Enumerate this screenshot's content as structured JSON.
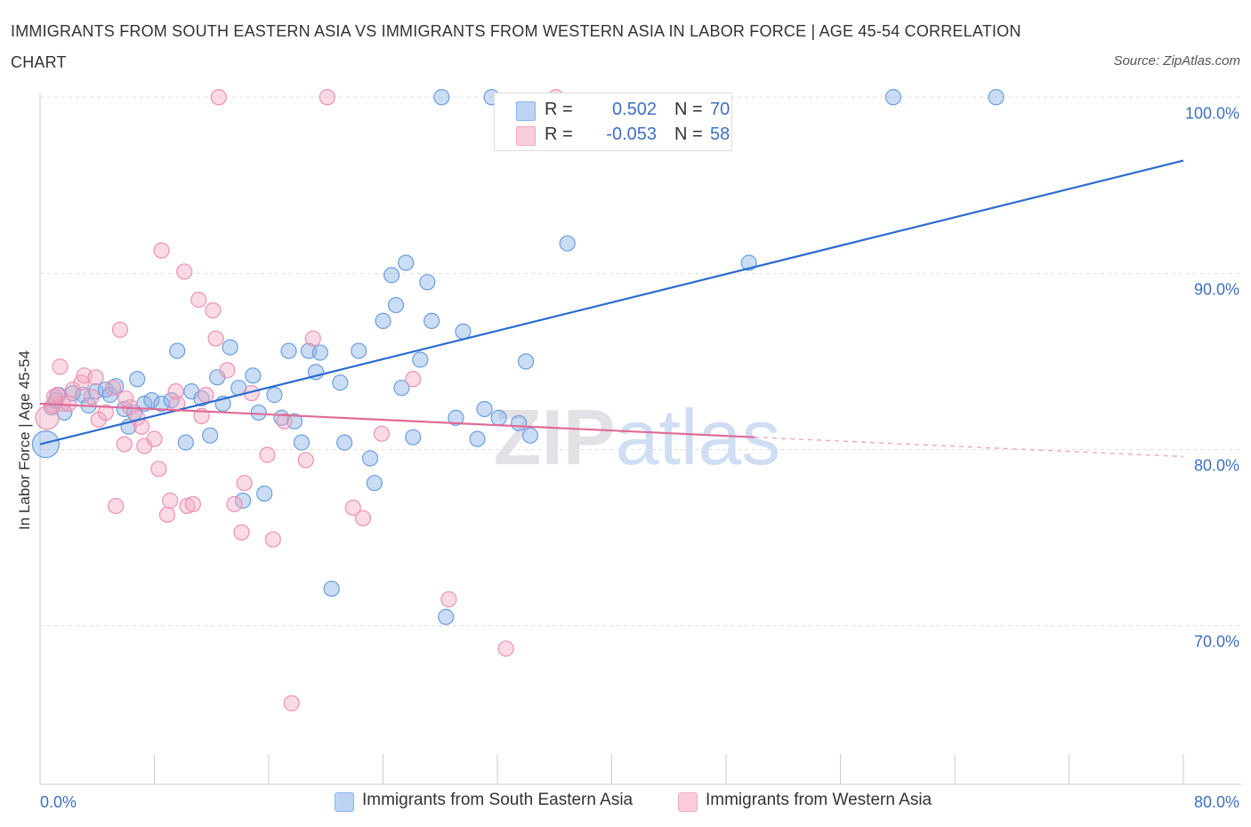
{
  "title": "IMMIGRANTS FROM SOUTH EASTERN ASIA VS IMMIGRANTS FROM WESTERN ASIA IN LABOR FORCE | AGE 45-54 CORRELATION CHART",
  "source": "Source: ZipAtlas.com",
  "watermark": "ZIPatlas",
  "legend": {
    "rows": [
      {
        "r_label": "R = ",
        "r_value": "0.502",
        "n_label": "N = ",
        "n_value": "70"
      },
      {
        "r_label": "R = ",
        "r_value": "-0.053",
        "n_label": "N = ",
        "n_value": "58"
      }
    ]
  },
  "chart_data": {
    "type": "scatter",
    "title": "IMMIGRANTS FROM SOUTH EASTERN ASIA VS IMMIGRANTS FROM WESTERN ASIA IN LABOR FORCE | AGE 45-54 CORRELATION CHART",
    "xlabel": "",
    "ylabel": "In Labor Force | Age 45-54",
    "xlim": [
      0,
      80
    ],
    "ylim": [
      61,
      104
    ],
    "x_tick_labels": [
      "0.0%",
      "80.0%"
    ],
    "y_ticks": [
      70,
      80,
      90,
      100
    ],
    "y_tick_labels": [
      "70.0%",
      "80.0%",
      "90.0%",
      "100.0%"
    ],
    "grid": true,
    "legend_position": "top-center",
    "colors": {
      "series1": "#8ab4e8",
      "series1_line": "#2b6ccf",
      "series2": "#f4a9c2",
      "series2_line": "#e06b96",
      "tick_text": "#3d6fc4"
    },
    "series": [
      {
        "name": "Immigrants from South Eastern Asia",
        "R": 0.502,
        "N": 70,
        "trend": {
          "x": [
            0,
            80
          ],
          "y": [
            80.3,
            96.4
          ]
        },
        "points": [
          [
            0.4,
            80.3
          ],
          [
            0.8,
            82.4
          ],
          [
            1.1,
            82.8
          ],
          [
            1.3,
            83.1
          ],
          [
            1.7,
            82.1
          ],
          [
            2.3,
            83.2
          ],
          [
            3.0,
            83.1
          ],
          [
            3.4,
            82.5
          ],
          [
            3.9,
            83.3
          ],
          [
            4.6,
            83.4
          ],
          [
            4.9,
            83.1
          ],
          [
            5.3,
            83.6
          ],
          [
            5.9,
            82.3
          ],
          [
            6.2,
            81.3
          ],
          [
            6.6,
            82.1
          ],
          [
            6.8,
            84.0
          ],
          [
            7.3,
            82.6
          ],
          [
            7.8,
            82.8
          ],
          [
            8.5,
            82.6
          ],
          [
            9.2,
            82.8
          ],
          [
            9.6,
            85.6
          ],
          [
            10.2,
            80.4
          ],
          [
            10.6,
            83.3
          ],
          [
            11.3,
            82.9
          ],
          [
            11.9,
            80.8
          ],
          [
            12.4,
            84.1
          ],
          [
            12.8,
            82.6
          ],
          [
            13.3,
            85.8
          ],
          [
            13.9,
            83.5
          ],
          [
            14.2,
            77.1
          ],
          [
            14.9,
            84.2
          ],
          [
            15.3,
            82.1
          ],
          [
            15.7,
            77.5
          ],
          [
            16.4,
            83.1
          ],
          [
            16.9,
            81.8
          ],
          [
            17.4,
            85.6
          ],
          [
            17.8,
            81.6
          ],
          [
            18.3,
            80.4
          ],
          [
            18.8,
            85.6
          ],
          [
            19.3,
            84.4
          ],
          [
            19.6,
            85.5
          ],
          [
            20.4,
            72.1
          ],
          [
            21.0,
            83.8
          ],
          [
            21.3,
            80.4
          ],
          [
            22.3,
            85.6
          ],
          [
            23.1,
            79.5
          ],
          [
            23.4,
            78.1
          ],
          [
            24.0,
            87.3
          ],
          [
            24.6,
            89.9
          ],
          [
            24.9,
            88.2
          ],
          [
            25.3,
            83.5
          ],
          [
            25.6,
            90.6
          ],
          [
            26.1,
            80.7
          ],
          [
            26.6,
            85.1
          ],
          [
            27.1,
            89.5
          ],
          [
            27.4,
            87.3
          ],
          [
            28.1,
            100.0
          ],
          [
            28.4,
            70.5
          ],
          [
            29.1,
            81.8
          ],
          [
            29.6,
            86.7
          ],
          [
            30.6,
            80.6
          ],
          [
            31.1,
            82.3
          ],
          [
            31.6,
            100.0
          ],
          [
            32.1,
            81.8
          ],
          [
            33.5,
            81.5
          ],
          [
            34.3,
            80.8
          ],
          [
            36.9,
            91.7
          ],
          [
            49.6,
            90.6
          ],
          [
            59.7,
            100.0
          ],
          [
            66.9,
            100.0
          ],
          [
            34.0,
            85.0
          ]
        ]
      },
      {
        "name": "Immigrants from Western Asia",
        "R": -0.053,
        "N": 58,
        "trend": {
          "x": [
            0,
            50
          ],
          "y": [
            82.6,
            80.7
          ]
        },
        "trend_dashed": {
          "x": [
            50,
            80
          ],
          "y": [
            80.7,
            79.6
          ]
        },
        "points": [
          [
            0.5,
            81.8
          ],
          [
            0.9,
            82.5
          ],
          [
            1.2,
            83.1
          ],
          [
            1.4,
            84.7
          ],
          [
            1.6,
            82.6
          ],
          [
            2.3,
            83.4
          ],
          [
            2.9,
            83.8
          ],
          [
            3.1,
            84.2
          ],
          [
            3.6,
            83.0
          ],
          [
            3.9,
            84.1
          ],
          [
            4.1,
            81.7
          ],
          [
            4.6,
            82.1
          ],
          [
            5.1,
            83.5
          ],
          [
            5.3,
            76.8
          ],
          [
            5.6,
            86.8
          ],
          [
            5.9,
            80.3
          ],
          [
            6.3,
            82.4
          ],
          [
            6.8,
            81.8
          ],
          [
            7.1,
            81.3
          ],
          [
            7.3,
            80.2
          ],
          [
            8.0,
            80.6
          ],
          [
            8.3,
            78.9
          ],
          [
            8.5,
            91.3
          ],
          [
            8.9,
            76.3
          ],
          [
            9.1,
            77.1
          ],
          [
            9.6,
            82.6
          ],
          [
            10.1,
            90.1
          ],
          [
            10.3,
            76.8
          ],
          [
            10.7,
            76.9
          ],
          [
            11.1,
            88.5
          ],
          [
            11.3,
            81.9
          ],
          [
            11.6,
            83.1
          ],
          [
            12.1,
            87.9
          ],
          [
            12.3,
            86.3
          ],
          [
            12.5,
            100.0
          ],
          [
            13.1,
            84.5
          ],
          [
            13.6,
            76.9
          ],
          [
            14.1,
            75.3
          ],
          [
            14.3,
            78.1
          ],
          [
            14.8,
            83.2
          ],
          [
            15.9,
            79.7
          ],
          [
            16.3,
            74.9
          ],
          [
            17.1,
            81.6
          ],
          [
            17.6,
            65.6
          ],
          [
            18.6,
            79.4
          ],
          [
            19.1,
            86.3
          ],
          [
            20.1,
            100.0
          ],
          [
            21.9,
            76.7
          ],
          [
            22.6,
            76.1
          ],
          [
            23.9,
            80.9
          ],
          [
            26.1,
            84.0
          ],
          [
            28.6,
            71.5
          ],
          [
            32.6,
            68.7
          ],
          [
            36.1,
            100.0
          ],
          [
            1.0,
            83.0
          ],
          [
            2.0,
            82.6
          ],
          [
            6.0,
            82.9
          ],
          [
            9.5,
            83.3
          ]
        ]
      }
    ]
  },
  "bottom_legend": [
    {
      "label": "Immigrants from South Eastern Asia"
    },
    {
      "label": "Immigrants from Western Asia"
    }
  ]
}
